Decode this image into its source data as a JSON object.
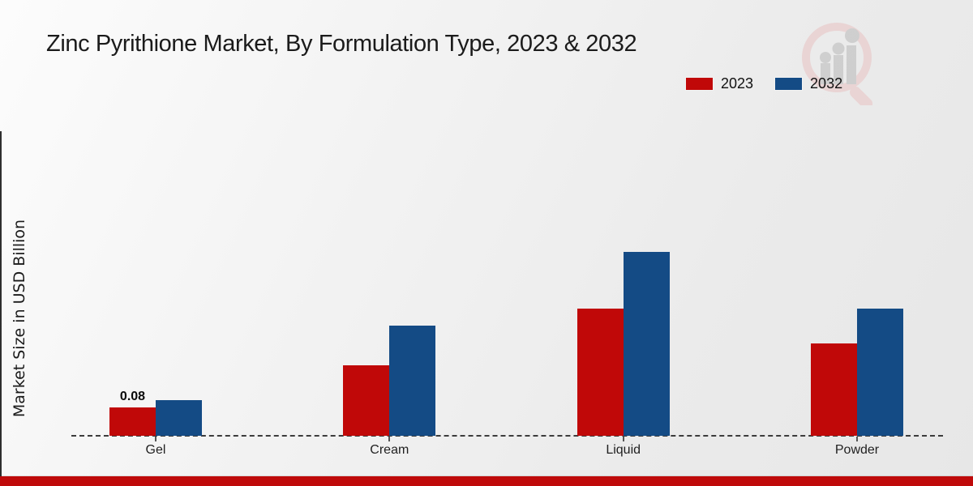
{
  "header": {
    "title": "Zinc Pyrithione Market, By Formulation Type, 2023 & 2032"
  },
  "legend": {
    "items": [
      {
        "label": "2023",
        "color": "#c00808"
      },
      {
        "label": "2032",
        "color": "#144b85"
      }
    ]
  },
  "chart_data": {
    "type": "bar",
    "title": "Zinc Pyrithione Market, By Formulation Type, 2023 & 2032",
    "ylabel": "Market Size in USD Billion",
    "xlabel": "",
    "categories": [
      "Gel",
      "Cream",
      "Liquid",
      "Powder"
    ],
    "series": [
      {
        "name": "2023",
        "color": "#c00808",
        "values": [
          0.08,
          0.2,
          0.36,
          0.26
        ]
      },
      {
        "name": "2032",
        "color": "#144b85",
        "values": [
          0.1,
          0.31,
          0.52,
          0.36
        ]
      }
    ],
    "bar_labels": [
      {
        "category": "Gel",
        "series": "2023",
        "text": "0.08"
      }
    ],
    "axis": {
      "y_axis_visible": false,
      "grid": false,
      "baseline_style": "dashed"
    },
    "legend_position": "top-right"
  },
  "colors": {
    "footer_strip": "#bf0a0a",
    "baseline": "#3c3c3c",
    "left_accent": "#2e2e2e"
  },
  "watermark": {
    "name": "market-research-magnifier-logo"
  }
}
